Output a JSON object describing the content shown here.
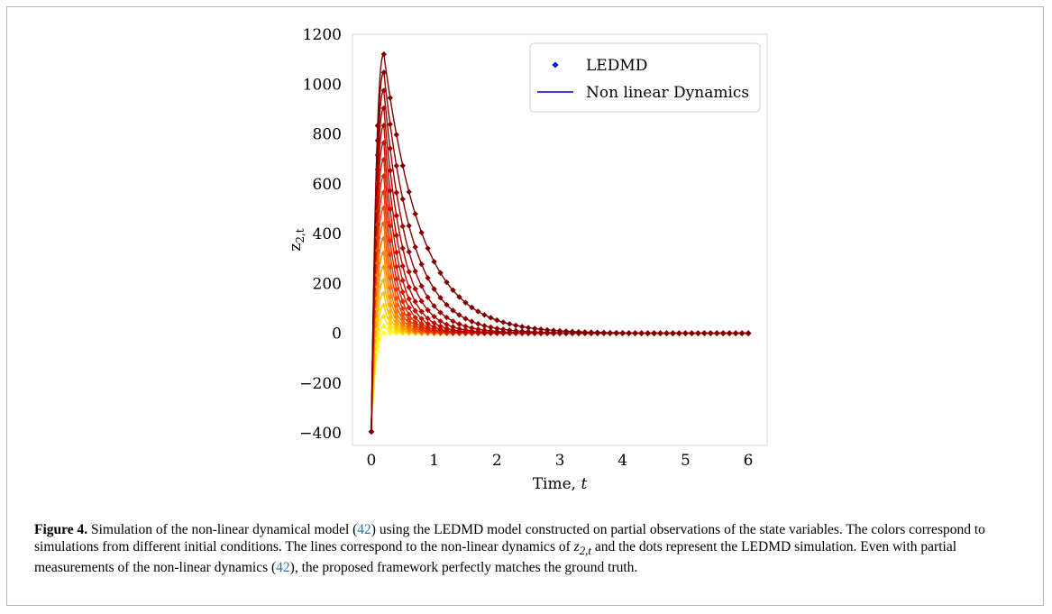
{
  "figure": {
    "caption_label": "Figure 4.",
    "caption_parts": {
      "p1": " Simulation of the non-linear dynamical model (",
      "ref1": "42",
      "p2": ") using the LEDMD model constructed on partial observations of the state variables. The colors correspond to simulations from different initial conditions. The lines correspond to the non-linear dynamics of ",
      "sym": "z",
      "sub": "2,t",
      "p3": " and the dots represent the LEDMD simulation. Even with partial measurements of the non-linear dynamics (",
      "ref2": "42",
      "p4": "), the proposed framework perfectly matches the ground truth."
    }
  },
  "chart_data": {
    "type": "line",
    "xlabel": "Time, t",
    "ylabel": "z2,t",
    "xlim": [
      -0.3,
      6.3
    ],
    "ylim": [
      -450,
      1200
    ],
    "xticks": [
      0,
      1,
      2,
      3,
      4,
      5,
      6
    ],
    "yticks": [
      -400,
      -200,
      0,
      200,
      400,
      600,
      800,
      1000,
      1200
    ],
    "ytick_labels": [
      "−400",
      "−200",
      "0",
      "200",
      "400",
      "600",
      "800",
      "1000",
      "1200"
    ],
    "grid": false,
    "legend": {
      "placement": "top-right",
      "entries": [
        {
          "label": "LEDMD",
          "marker": "diamond",
          "color": "#0000cc"
        },
        {
          "label": "Non linear Dynamics",
          "marker": "line",
          "color": "#0000cc"
        }
      ]
    },
    "colormap": [
      "#ffff33",
      "#ffcc00",
      "#ff8000",
      "#e83000",
      "#b80000",
      "#7a0000"
    ],
    "t_start": 0,
    "t_end": 6,
    "dot_step": 0.1,
    "series_count": 20,
    "series_peak_range": [
      0,
      1120
    ],
    "series_peak_time": 0.2,
    "initial_value": -395
  }
}
